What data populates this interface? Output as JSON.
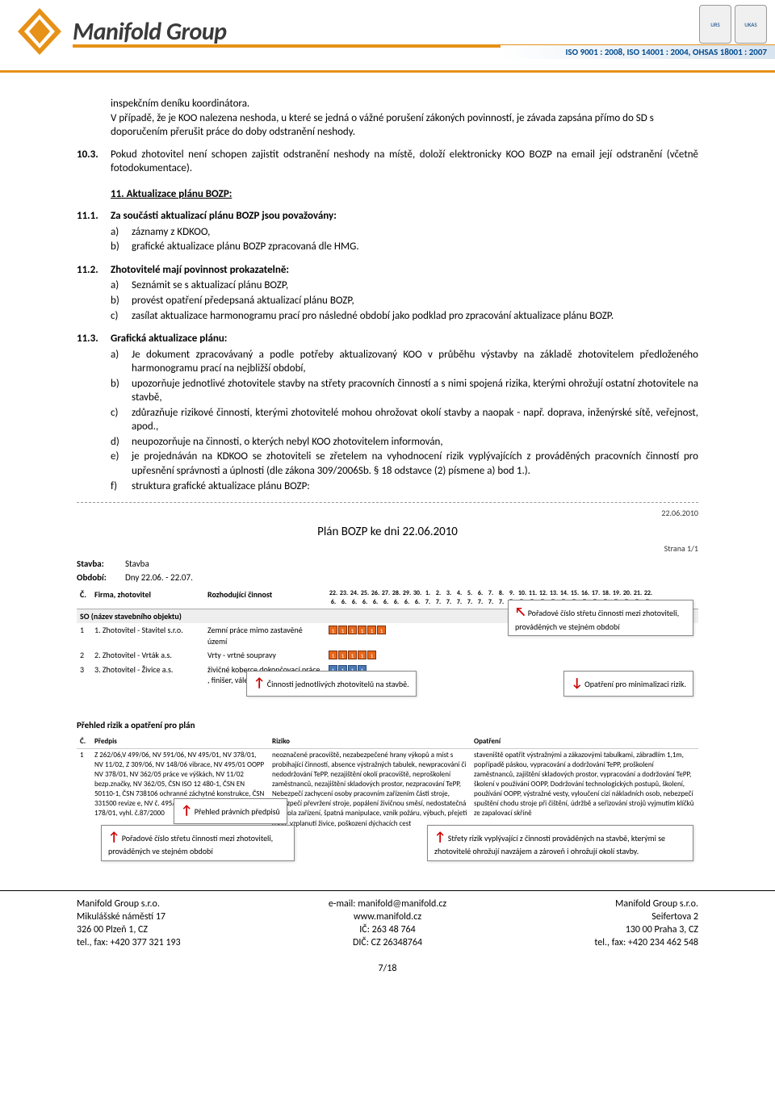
{
  "header": {
    "company": "Manifold Group",
    "iso_strip": "ISO 9001 : 2008, ISO 14001 : 2004, OHSAS 18001 : 2007",
    "logo_color": "#e69117",
    "cert1": "URS",
    "cert2": "UKAS"
  },
  "body": {
    "cont1": "inspekčním deníku koordinátora.",
    "cont2": "V případě, že je KOO nalezena neshoda, u které se jedná o vážné porušení zákoných povinností, je závada zapsána přímo do SD s doporučením přerušit práce do doby odstranění neshody.",
    "p103_num": "10.3.",
    "p103_txt": "Pokud zhotovitel není schopen zajistit odstranění neshody na místě, doloží elektronicky KOO BOZP na email její odstranění (včetně fotodokumentace).",
    "s11_head": "11. Aktualizace plánu BOZP:",
    "p111_num": "11.1.",
    "p111_lead": "Za součásti aktualizací plánu BOZP jsou považovány:",
    "p111_a": "záznamy z KDKOO,",
    "p111_b": "grafické aktualizace plánu BOZP zpracovaná dle HMG.",
    "p112_num": "11.2.",
    "p112_lead": "Zhotovitelé mají povinnost prokazatelně:",
    "p112_a": "Seznámit se s aktualizací plánu BOZP,",
    "p112_b": "provést opatření předepsaná aktualizací plánu BOZP,",
    "p112_c": "zasílat aktualizace harmonogramu prací pro následné období jako podklad pro zpracování aktualizace plánu BOZP.",
    "p113_num": "11.3.",
    "p113_lead": "Grafická aktualizace plánu:",
    "p113_a": "Je dokument zpracovávaný a podle potřeby aktualizovaný KOO v průběhu výstavby na základě zhotovitelem předloženého harmonogramu prací na nejbližší období,",
    "p113_b": "upozorňuje jednotlivé zhotovitele stavby na střety pracovních činností a s nimi spojená rizika, kterými ohrožují ostatní zhotovitele na stavbě,",
    "p113_c": "zdůrazňuje rizikové činnosti, kterými zhotovitelé mohou ohrožovat okolí stavby a naopak - např. doprava, inženýrské sítě, veřejnost, apod.,",
    "p113_d": "neupozorňuje na činnosti, o kterých nebyl KOO zhotovitelem informován,",
    "p113_e": "je projednáván na KDKOO se zhotoviteli se zřetelem na vyhodnocení rizik vyplývajících z prováděných pracovních činností pro upřesnění správnosti a úplnosti (dle zákona 309/2006Sb. § 18 odstavce (2) písmene a) bod 1.).",
    "p113_f": "struktura grafické aktualizace plánu BOZP:"
  },
  "diagram": {
    "title": "Plán BOZP ke dni 22.06.2010",
    "date": "22.06.2010",
    "page": "Strana 1/1",
    "stavba_l": "Stavba:",
    "stavba_v": "Stavba",
    "obdobi_l": "Období:",
    "obdobi_v": "Dny 22.06. - 22.07.",
    "days_top": [
      "22.",
      "23.",
      "24.",
      "25.",
      "26.",
      "27.",
      "28.",
      "29.",
      "30.",
      "1.",
      "2.",
      "3.",
      "4.",
      "5.",
      "6.",
      "7.",
      "8.",
      "9.",
      "10.",
      "11.",
      "12.",
      "13.",
      "14.",
      "15.",
      "16.",
      "17.",
      "18.",
      "19.",
      "20.",
      "21.",
      "22."
    ],
    "days_bot": [
      "6.",
      "6.",
      "6.",
      "6.",
      "6.",
      "6.",
      "6.",
      "6.",
      "6.",
      "7.",
      "7.",
      "7.",
      "7.",
      "7.",
      "7.",
      "7.",
      "7.",
      "7.",
      "7.",
      "7.",
      "7.",
      "7.",
      "7.",
      "7.",
      "7.",
      "7.",
      "7.",
      "7.",
      "7.",
      "7.",
      "7."
    ],
    "col_c": "Č.",
    "col_firm": "Firma, zhotovitel",
    "col_act": "Rozhodující činnost",
    "so_label": "SO (název stavebního objektu)",
    "rows": [
      {
        "n": "1",
        "f": "1. Zhotovitel - Stavitel s.r.o.",
        "a": "Zemní práce mimo zastavěné území",
        "bars": 6,
        "color": "orange"
      },
      {
        "n": "2",
        "f": "2. Zhotovitel - Vrták a.s.",
        "a": "Vrty - vrtné soupravy",
        "bars": 5,
        "color": "orange"
      },
      {
        "n": "3",
        "f": "3. Zhotovitel - Živice a.s.",
        "a": "živičné koberce dokončovací práce , finišer, válec",
        "bars": 4,
        "color": "blue"
      }
    ],
    "callout_poradi": "Pořadové číslo střetu činností mezi zhotoviteli, prováděných ve stejném období",
    "callout_cinnosti": "Činnosti jednotlivých zhotovitelů na stavbě.",
    "callout_opatreni": "Opatření pro minimalizaci rizik.",
    "risks_head": "Přehled rizik a opatření pro plán",
    "rcol_c": "Č.",
    "rcol_p": "Předpis",
    "rcol_r": "Riziko",
    "rcol_o": "Opatření",
    "r1_n": "1",
    "r1_p": "Z 262/06,V 499/06, NV 591/06, NV 495/01, NV 378/01,   NV 11/02, Z 309/06, NV 148/06 vibrace, NV 495/01 OOPP NV 378/01, NV 362/05 práce ve výškách, NV 11/02 bezp.značky, NV 362/05, ČSN ISO 12 480-1, ČSN EN 50110-1, ČSN 738106 ochranné záchytné konstrukce, ČSN 331500 revize e, NV č. 495/01, NV č. 591/06, NV č. 178/01, vyhl. č.87/2000",
    "r1_r": "neoznačené pracoviště, nezabezpečené hrany výkopů a míst s probíhající činností, absence výstražných tabulek, newpracování či nedodržování TePP, nezajištění okolí pracoviště, neproškolení zaměstnanců, nezajištění skladových prostor, nezpracování TePP, Nebezpečí zachycení osoby pracovním zařízením části stroje, nebezpečí převržení stroje, popálení živičnou směsí, nedostatečná kontrola zařízení, špatná manipulace, vznik požáru, výbuch, přejetí osob, vzplanutí živice, poškození dýchacích cest",
    "r1_o": "staveniště opatřit výstražnými a zákazovými tabulkami, zábradlím 1,1m, popřípadě páskou, vypracování a dodržování TePP, proškolení zaměstnanců, zajištění skladových prostor, vypracování a dodržování TePP, školení v používání OOPP, Dodržování technologických postupů, školení, používání OOPP, výstražné vesty, vyloučení cizí nákladních osob, nebezpečí spuštění chodu stroje při čištění, údržbě a seřizování strojů vyjmutím klíčků ze zapalovací skříně",
    "callout_predpisy": "Přehled právních předpisů",
    "callout_poradi2": "Pořadové číslo střetu činností mezi zhotoviteli, prováděných ve stejném období",
    "callout_strety": "Střety rizik vyplývající z činností prováděných na stavbě, kterými se zhotovitelé ohrožují navzájem a zároveň i ohrožují okolí stavby.",
    "orange": "#e8671a",
    "blue": "#4a7ab5"
  },
  "footer": {
    "l1": "Manifold Group s.r.o.",
    "l2": "Mikulášské náměstí 17",
    "l3": "326 00 Plzeň 1, CZ",
    "l4": "tel., fax: +420  377 321 193",
    "c1": "e-mail: manifold@manifold.cz",
    "c2": "www.manifold.cz",
    "c3": "IČ: 263 48 764",
    "c4": "DIČ: CZ 26348764",
    "r1": "Manifold Group s.r.o.",
    "r2": "Seifertova 2",
    "r3": "130 00  Praha 3, CZ",
    "r4": "tel., fax: +420  234 462 548",
    "page": "7/18"
  }
}
